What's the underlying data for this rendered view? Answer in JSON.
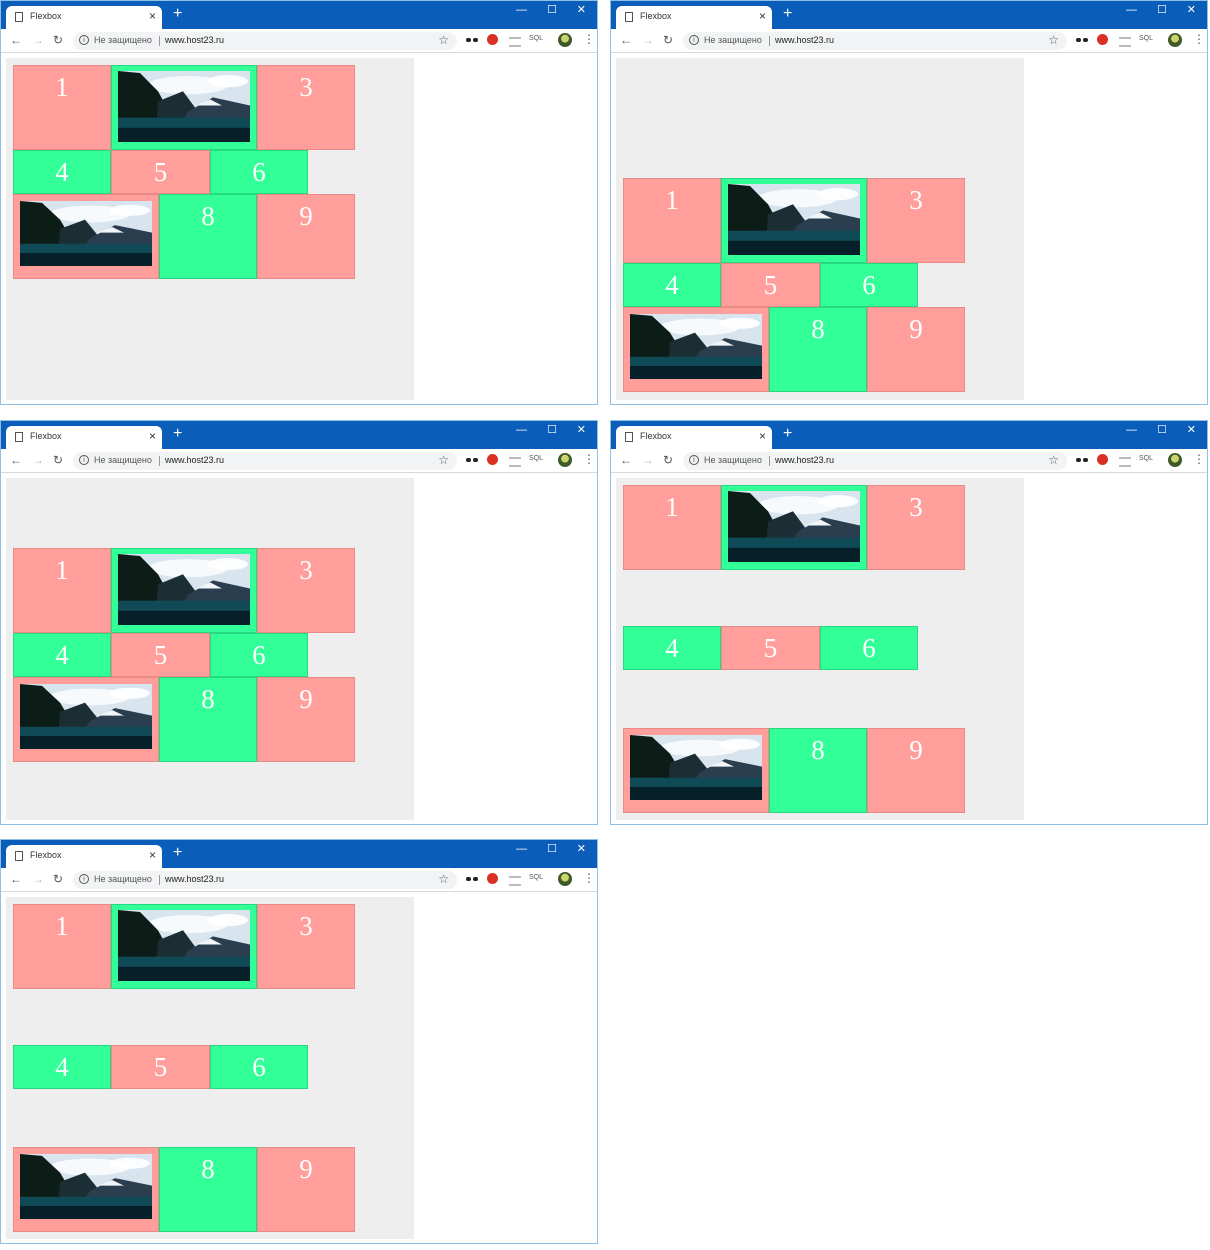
{
  "browser": {
    "tab_title": "Flexbox",
    "tab_close": "×",
    "new_tab": "+",
    "minimize": "—",
    "maximize": "☐",
    "close": "✕",
    "back": "←",
    "forward": "→",
    "reload": "↻",
    "info": "i",
    "security_label": "Не защищено",
    "url": "www.host23.ru",
    "bookmark": "☆",
    "ext_sql": "SQL",
    "menu": "⋮"
  },
  "items": [
    "1",
    "3",
    "4",
    "5",
    "6",
    "8",
    "9"
  ],
  "icons": {
    "page": "page-icon",
    "bookmark": "star-icon",
    "extensions": [
      "glasses-icon",
      "red-extension-icon",
      "layers-icon",
      "sql-icon"
    ],
    "profile": "avatar"
  },
  "colors": {
    "title_bar": "#0a5db8",
    "container_bg": "#eeeeee",
    "pink_item": "#ff9e9a",
    "green_item": "#33ff99",
    "item_text": "#ffffff"
  }
}
